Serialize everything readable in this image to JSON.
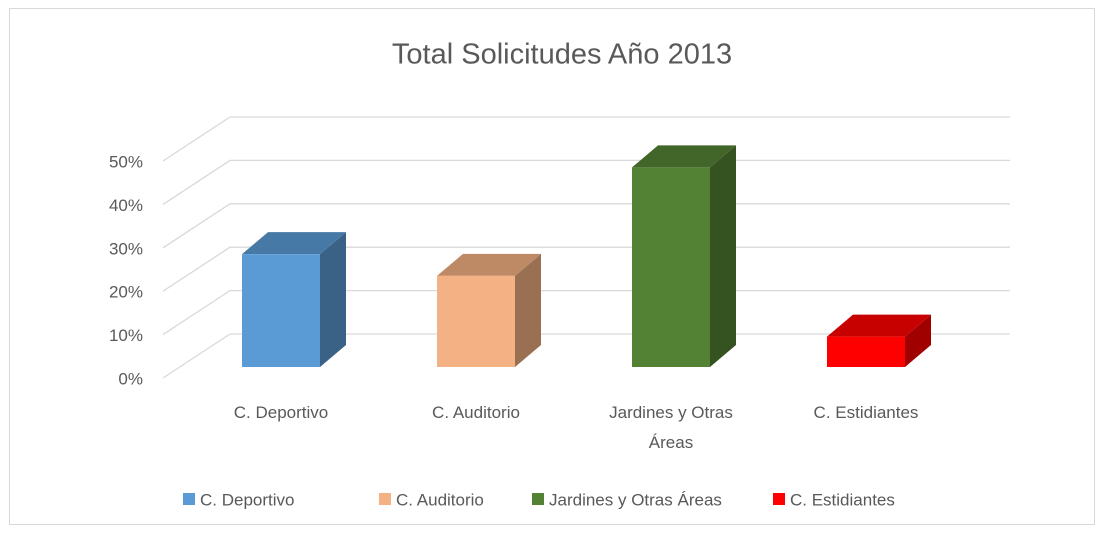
{
  "chart_data": {
    "type": "bar3d",
    "title": "Total Solicitudes Año 2013",
    "categories": [
      "C. Deportivo",
      "C. Auditorio",
      "Jardines y Otras Áreas",
      "C. Estidiantes"
    ],
    "values": [
      26,
      21,
      46,
      7
    ],
    "colors": [
      "#5b9bd5",
      "#f4b183",
      "#548235",
      "#ff0000"
    ],
    "ylim": [
      0,
      50
    ],
    "yticks": [
      {
        "value": 0,
        "label": "0%"
      },
      {
        "value": 10,
        "label": "10%"
      },
      {
        "value": 20,
        "label": "20%"
      },
      {
        "value": 30,
        "label": "30%"
      },
      {
        "value": 40,
        "label": "40%"
      },
      {
        "value": 50,
        "label": "50%"
      }
    ],
    "grid": true,
    "legend": "bottom"
  }
}
